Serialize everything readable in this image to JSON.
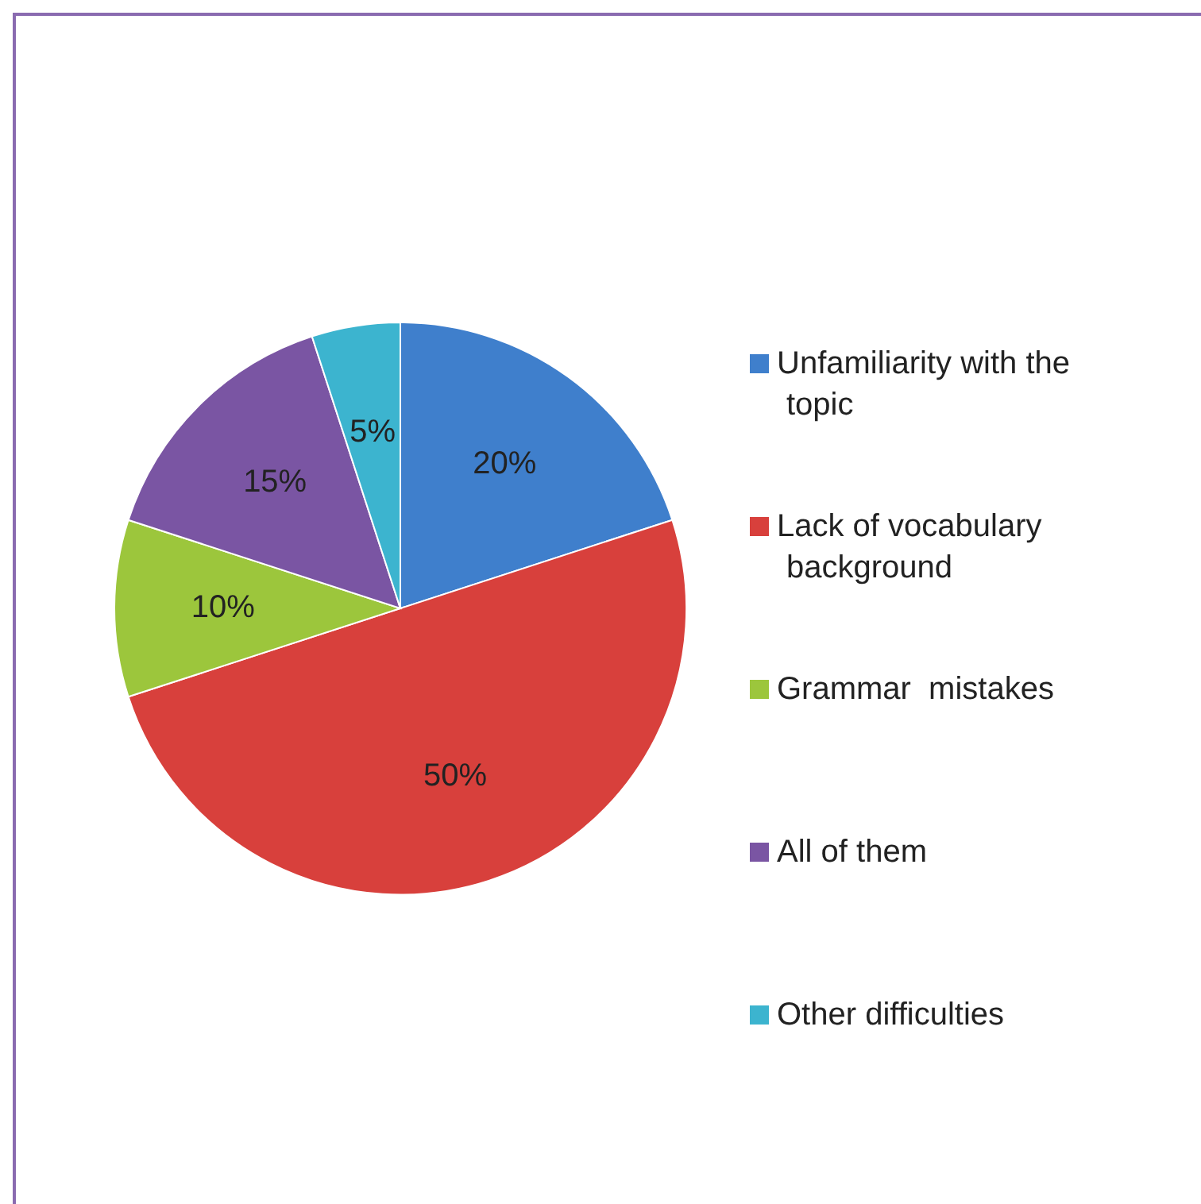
{
  "chart_data": {
    "type": "pie",
    "categories": [
      "Unfamiliarity with the topic",
      "Lack of vocabulary background",
      "Grammar  mistakes",
      "All of them",
      "Other difficulties"
    ],
    "values": [
      20,
      50,
      10,
      15,
      5
    ],
    "colors": [
      "#3f7fcc",
      "#d8403c",
      "#9cc63c",
      "#7a55a3",
      "#3cb4cf"
    ],
    "value_labels": [
      "20%",
      "50%",
      "10%",
      "15%",
      "5%"
    ],
    "legend": "right"
  }
}
